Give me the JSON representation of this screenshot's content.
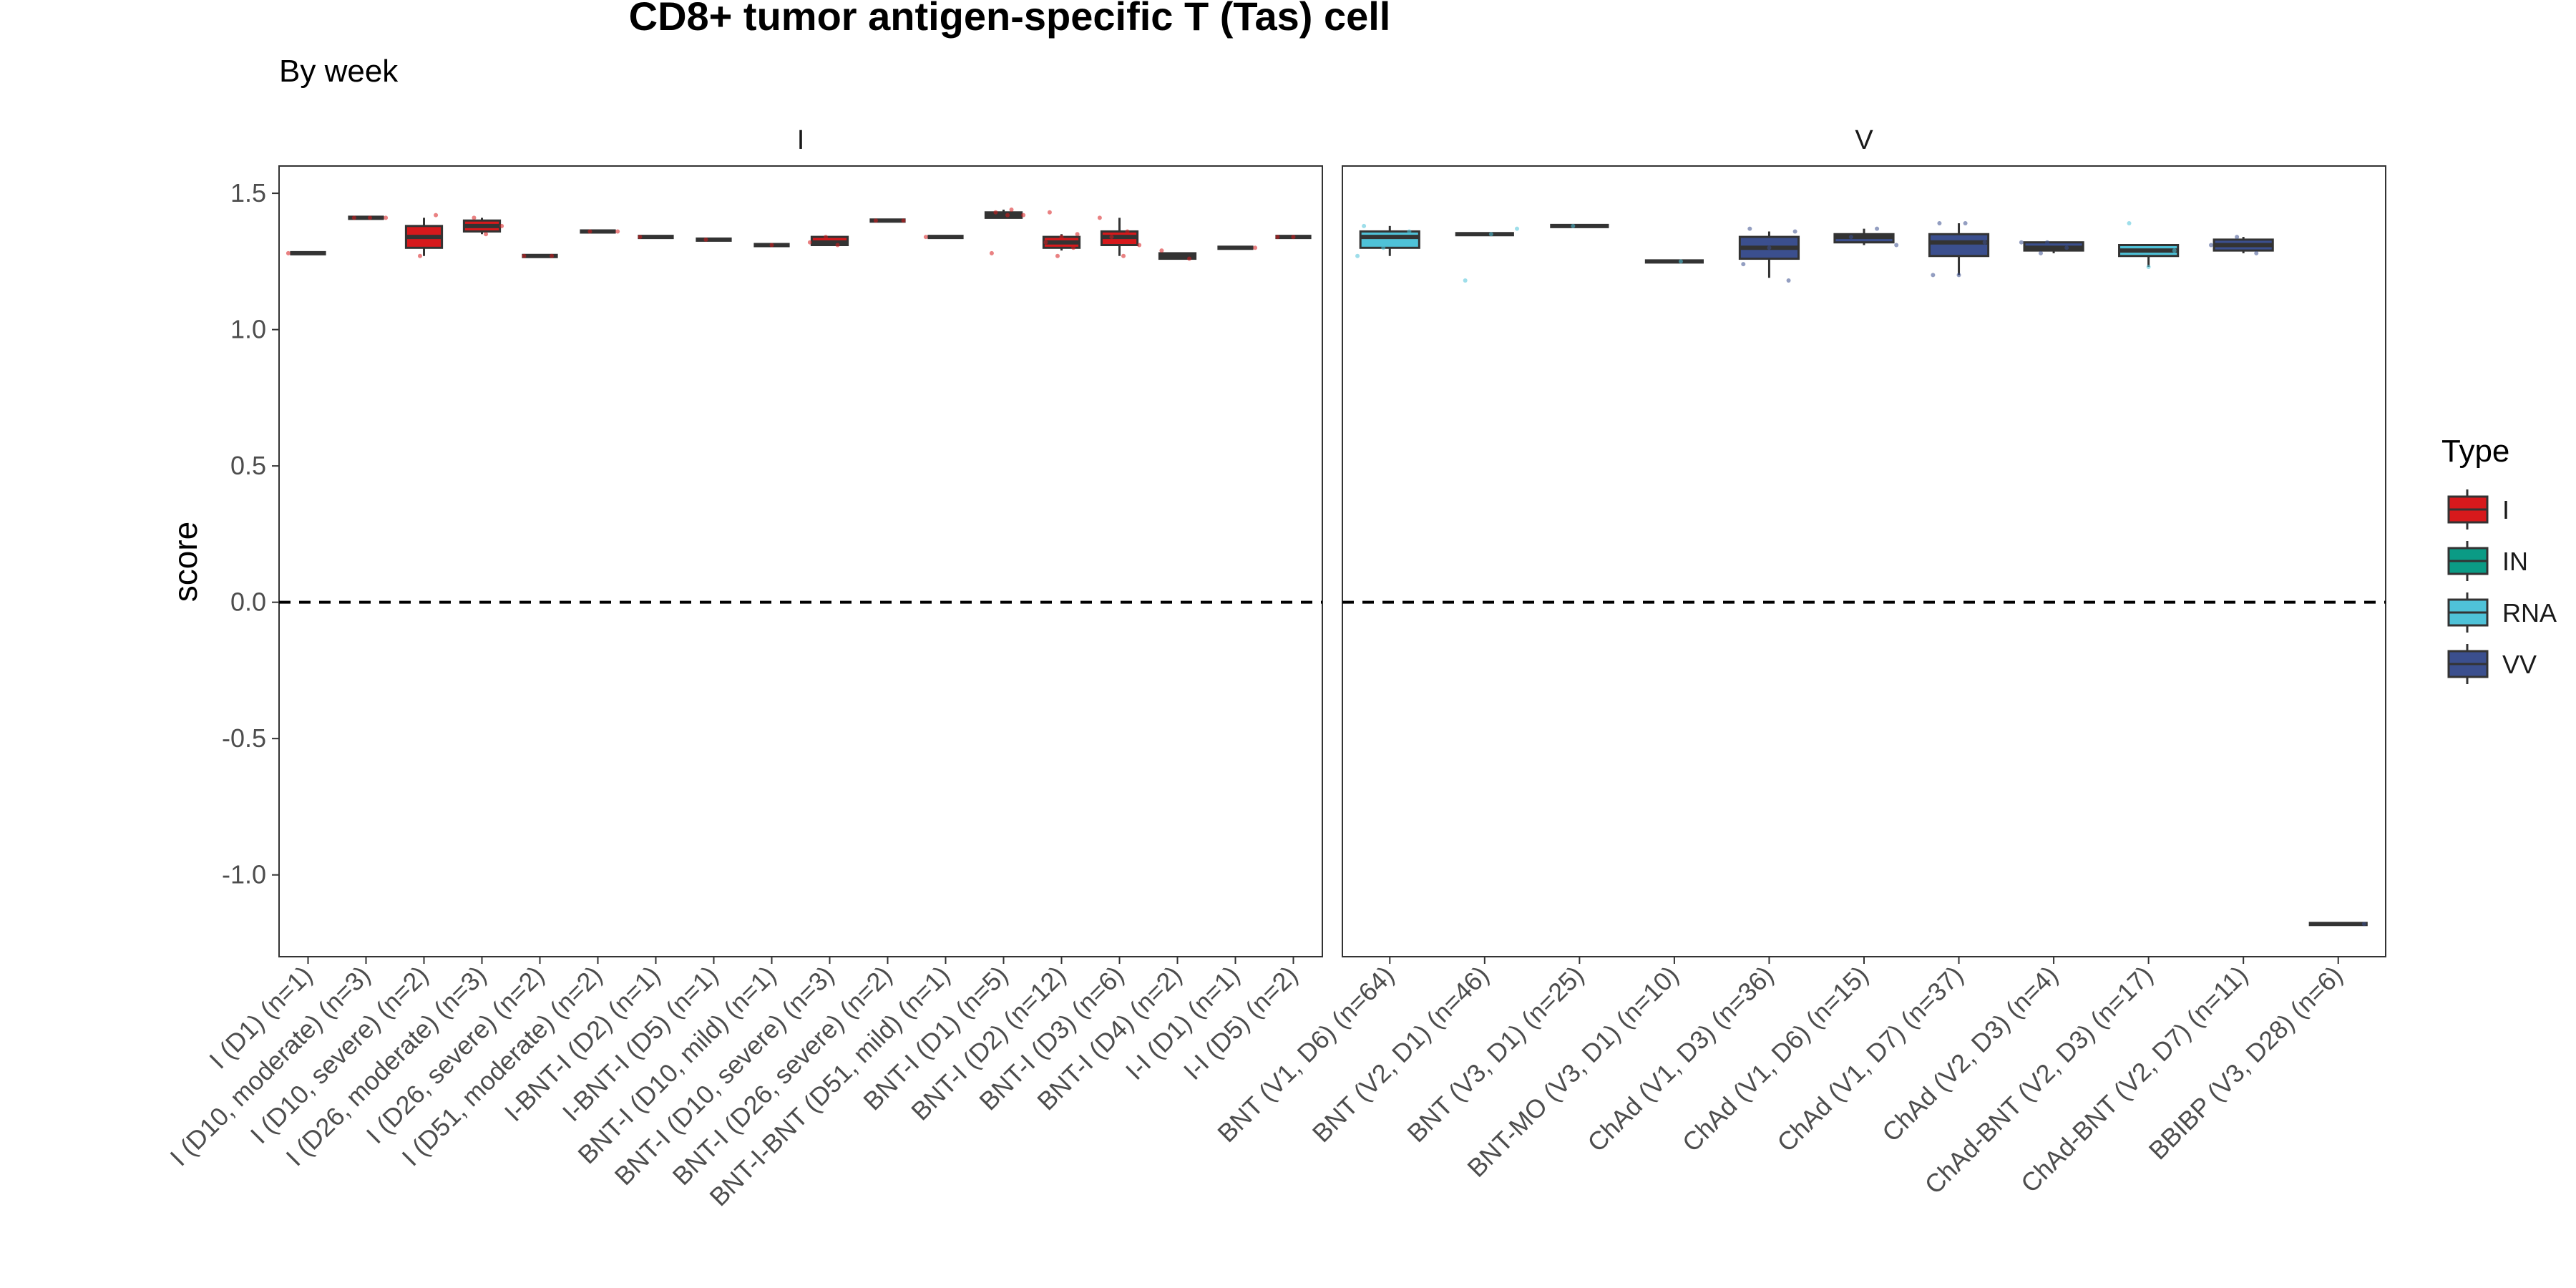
{
  "chart_data": {
    "type": "box",
    "title": "CD8+ tumor antigen-specific T (Tas) cell",
    "subtitle": "By week",
    "ylabel": "score",
    "xlabel": "",
    "ylim": [
      -1.3,
      1.6
    ],
    "yticks": [
      -1.0,
      -0.5,
      0.0,
      0.5,
      1.0,
      1.5
    ],
    "ytick_labels": [
      "-1.0",
      "-0.5",
      "0.0",
      "0.5",
      "1.0",
      "1.5"
    ],
    "reference_line": 0.0,
    "legend": {
      "title": "Type",
      "position": "right",
      "entries": [
        {
          "label": "I",
          "color": "#d7191c"
        },
        {
          "label": "IN",
          "color": "#0b9b85"
        },
        {
          "label": "RNA",
          "color": "#4fc2d8"
        },
        {
          "label": "VV",
          "color": "#3b4f8e"
        }
      ]
    },
    "panels": [
      {
        "strip": "I",
        "groups": [
          {
            "label": "I (D1) (n=1)",
            "type": "I",
            "q1": 1.28,
            "median": 1.28,
            "q3": 1.28,
            "lo": 1.28,
            "hi": 1.28,
            "points": [
              1.28
            ]
          },
          {
            "label": "I (D10, moderate) (n=3)",
            "type": "I",
            "q1": 1.41,
            "median": 1.41,
            "q3": 1.41,
            "lo": 1.41,
            "hi": 1.41,
            "points": [
              1.41,
              1.41,
              1.41
            ]
          },
          {
            "label": "I (D10, severe) (n=2)",
            "type": "I",
            "q1": 1.3,
            "median": 1.34,
            "q3": 1.38,
            "lo": 1.27,
            "hi": 1.41,
            "points": [
              1.27,
              1.42
            ]
          },
          {
            "label": "I (D26, moderate) (n=3)",
            "type": "I",
            "q1": 1.36,
            "median": 1.38,
            "q3": 1.4,
            "lo": 1.35,
            "hi": 1.41,
            "points": [
              1.35,
              1.38,
              1.41
            ]
          },
          {
            "label": "I (D26, severe) (n=2)",
            "type": "I",
            "q1": 1.27,
            "median": 1.27,
            "q3": 1.27,
            "lo": 1.27,
            "hi": 1.27,
            "points": [
              1.27,
              1.27
            ]
          },
          {
            "label": "I (D51, moderate) (n=2)",
            "type": "I",
            "q1": 1.36,
            "median": 1.36,
            "q3": 1.36,
            "lo": 1.36,
            "hi": 1.36,
            "points": [
              1.36,
              1.36
            ]
          },
          {
            "label": "I-BNT-I (D2) (n=1)",
            "type": "I",
            "q1": 1.34,
            "median": 1.34,
            "q3": 1.34,
            "lo": 1.34,
            "hi": 1.34,
            "points": [
              1.34
            ]
          },
          {
            "label": "I-BNT-I (D5) (n=1)",
            "type": "I",
            "q1": 1.33,
            "median": 1.33,
            "q3": 1.33,
            "lo": 1.33,
            "hi": 1.33,
            "points": [
              1.33
            ]
          },
          {
            "label": "BNT-I (D10, mild) (n=1)",
            "type": "I",
            "q1": 1.31,
            "median": 1.31,
            "q3": 1.31,
            "lo": 1.31,
            "hi": 1.31,
            "points": [
              1.31
            ]
          },
          {
            "label": "BNT-I (D10, severe) (n=3)",
            "type": "I",
            "q1": 1.31,
            "median": 1.32,
            "q3": 1.34,
            "lo": 1.31,
            "hi": 1.34,
            "points": [
              1.31,
              1.32,
              1.34
            ]
          },
          {
            "label": "BNT-I (D26, severe) (n=2)",
            "type": "I",
            "q1": 1.4,
            "median": 1.4,
            "q3": 1.4,
            "lo": 1.4,
            "hi": 1.4,
            "points": [
              1.4,
              1.4
            ]
          },
          {
            "label": "BNT-I-BNT (D51, mild) (n=1)",
            "type": "I",
            "q1": 1.34,
            "median": 1.34,
            "q3": 1.34,
            "lo": 1.34,
            "hi": 1.34,
            "points": [
              1.34
            ]
          },
          {
            "label": "BNT-I (D1) (n=5)",
            "type": "I",
            "q1": 1.41,
            "median": 1.42,
            "q3": 1.43,
            "lo": 1.41,
            "hi": 1.44,
            "points": [
              1.28,
              1.42,
              1.42,
              1.43,
              1.44
            ]
          },
          {
            "label": "BNT-I (D2) (n=12)",
            "type": "I",
            "q1": 1.3,
            "median": 1.32,
            "q3": 1.34,
            "lo": 1.29,
            "hi": 1.35,
            "points": [
              1.27,
              1.3,
              1.32,
              1.34,
              1.35,
              1.43
            ]
          },
          {
            "label": "BNT-I (D3) (n=6)",
            "type": "I",
            "q1": 1.31,
            "median": 1.34,
            "q3": 1.36,
            "lo": 1.27,
            "hi": 1.41,
            "points": [
              1.27,
              1.31,
              1.34,
              1.36,
              1.41
            ]
          },
          {
            "label": "BNT-I (D4) (n=2)",
            "type": "I",
            "q1": 1.26,
            "median": 1.27,
            "q3": 1.28,
            "lo": 1.26,
            "hi": 1.28,
            "points": [
              1.26,
              1.29
            ]
          },
          {
            "label": "I-I (D1) (n=1)",
            "type": "I",
            "q1": 1.3,
            "median": 1.3,
            "q3": 1.3,
            "lo": 1.3,
            "hi": 1.3,
            "points": [
              1.3
            ]
          },
          {
            "label": "I-I (D5) (n=2)",
            "type": "I",
            "q1": 1.34,
            "median": 1.34,
            "q3": 1.34,
            "lo": 1.34,
            "hi": 1.34,
            "points": [
              1.34,
              1.34
            ]
          }
        ]
      },
      {
        "strip": "V",
        "groups": [
          {
            "label": "BNT (V1, D6) (n=64)",
            "type": "RNA",
            "q1": 1.3,
            "median": 1.34,
            "q3": 1.36,
            "lo": 1.27,
            "hi": 1.38,
            "points": [
              1.27,
              1.3,
              1.36,
              1.38
            ]
          },
          {
            "label": "BNT (V2, D1) (n=46)",
            "type": "RNA",
            "q1": 1.35,
            "median": 1.35,
            "q3": 1.35,
            "lo": 1.35,
            "hi": 1.35,
            "points": [
              1.18,
              1.35,
              1.37
            ]
          },
          {
            "label": "BNT (V3, D1) (n=25)",
            "type": "RNA",
            "q1": 1.38,
            "median": 1.38,
            "q3": 1.38,
            "lo": 1.38,
            "hi": 1.38,
            "points": [
              1.38
            ]
          },
          {
            "label": "BNT-MO (V3, D1) (n=10)",
            "type": "RNA",
            "q1": 1.25,
            "median": 1.25,
            "q3": 1.25,
            "lo": 1.25,
            "hi": 1.25,
            "points": [
              1.25
            ]
          },
          {
            "label": "ChAd (V1, D3) (n=36)",
            "type": "VV",
            "q1": 1.26,
            "median": 1.3,
            "q3": 1.34,
            "lo": 1.19,
            "hi": 1.36,
            "points": [
              1.18,
              1.24,
              1.3,
              1.36,
              1.37
            ]
          },
          {
            "label": "ChAd (V1, D6) (n=15)",
            "type": "VV",
            "q1": 1.32,
            "median": 1.34,
            "q3": 1.35,
            "lo": 1.31,
            "hi": 1.37,
            "points": [
              1.31,
              1.34,
              1.37
            ]
          },
          {
            "label": "ChAd (V1, D7) (n=37)",
            "type": "VV",
            "q1": 1.27,
            "median": 1.32,
            "q3": 1.35,
            "lo": 1.2,
            "hi": 1.39,
            "points": [
              1.2,
              1.2,
              1.32,
              1.39,
              1.39
            ]
          },
          {
            "label": "ChAd (V2, D3) (n=4)",
            "type": "VV",
            "q1": 1.29,
            "median": 1.3,
            "q3": 1.32,
            "lo": 1.28,
            "hi": 1.32,
            "points": [
              1.28,
              1.3,
              1.32,
              1.32
            ]
          },
          {
            "label": "ChAd-BNT (V2, D3) (n=17)",
            "type": "RNA",
            "q1": 1.27,
            "median": 1.29,
            "q3": 1.31,
            "lo": 1.23,
            "hi": 1.31,
            "points": [
              1.23,
              1.29,
              1.39
            ]
          },
          {
            "label": "ChAd-BNT (V2, D7) (n=11)",
            "type": "VV",
            "q1": 1.29,
            "median": 1.31,
            "q3": 1.33,
            "lo": 1.28,
            "hi": 1.34,
            "points": [
              1.28,
              1.31,
              1.34
            ]
          },
          {
            "label": "BBIBP (V3, D28) (n=6)",
            "type": "VV",
            "q1": -1.18,
            "median": -1.18,
            "q3": -1.18,
            "lo": -1.18,
            "hi": -1.18,
            "points": [
              -1.18
            ]
          }
        ]
      }
    ]
  }
}
